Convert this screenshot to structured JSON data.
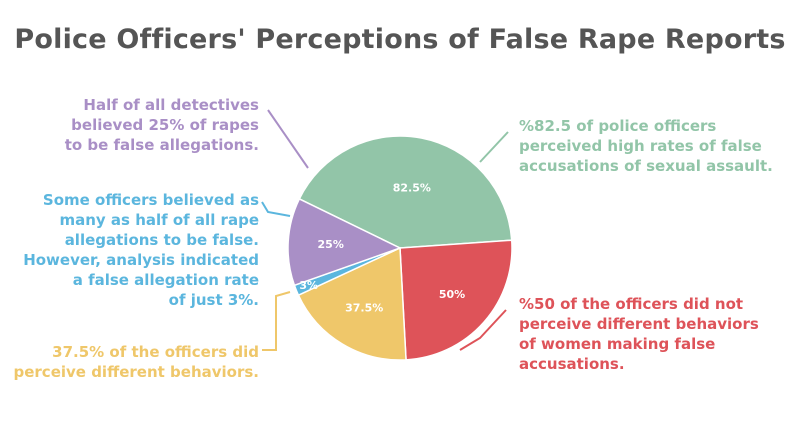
{
  "chart_data": {
    "type": "pie",
    "title": "Police Officers' Perceptions of False Rape Reports",
    "slices": [
      {
        "label": "82.5%",
        "value": 82.5,
        "color": "#92c5a8"
      },
      {
        "label": "50%",
        "value": 50,
        "color": "#de5359"
      },
      {
        "label": "37.5%",
        "value": 37.5,
        "color": "#efc76a"
      },
      {
        "label": "3%",
        "value": 3,
        "color": "#5bb6de"
      },
      {
        "label": "25%",
        "value": 25,
        "color": "#a98fc6"
      }
    ],
    "annotations": {
      "purple": {
        "color": "#a98fc6",
        "lines": [
          "Half of all detectives",
          "believed 25% of rapes",
          "to be false allegations."
        ]
      },
      "blue": {
        "color": "#5bb6de",
        "lines": [
          "Some officers believed as",
          "many as half of all rape",
          "allegations to be false.",
          "However, analysis indicated",
          "a false allegation rate",
          "of just 3%."
        ]
      },
      "yellow": {
        "color": "#efc76a",
        "lines": [
          "37.5% of the officers did",
          "perceive different behaviors."
        ]
      },
      "green": {
        "color": "#92c5a8",
        "lines": [
          "%82.5 of police officers",
          "perceived high rates of false",
          "accusations of sexual assault."
        ]
      },
      "red": {
        "color": "#de5359",
        "lines": [
          "%50 of the officers did not",
          "perceive different behaviors",
          "of women making false",
          "accusations."
        ]
      }
    }
  }
}
